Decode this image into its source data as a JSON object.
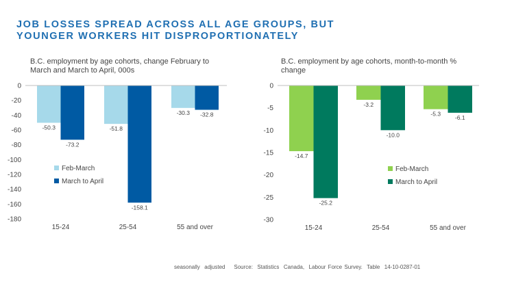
{
  "headline": {
    "line1": "JOB LOSSES SPREAD ACROSS ALL AGE GROUPS, BUT",
    "line2": "YOUNGER WORKERS HIT DISPROPORTIONATELY"
  },
  "footer": {
    "note": "seasonally  adjusted",
    "source": "Source:  Statistics  Canada,  Labour Force Survey.  Table  14-10-0287-01"
  },
  "colors": {
    "left_series1": "#a6d9ea",
    "left_series2": "#005aa3",
    "right_series1": "#8fd14f",
    "right_series2": "#007a5e"
  },
  "chart_data": [
    {
      "type": "bar",
      "title": "B.C. employment by age cohorts, change February to March and March to April, 000s",
      "categories": [
        "15-24",
        "25-54",
        "55 and over"
      ],
      "series": [
        {
          "name": "Feb-March",
          "values": [
            -50.3,
            -51.8,
            -30.3
          ],
          "labels": [
            "-50.3",
            "-51.8",
            "-30.3"
          ]
        },
        {
          "name": "March to April",
          "values": [
            -73.2,
            -158.1,
            -32.8
          ],
          "labels": [
            "-73.2",
            "-158.1",
            "-32.8"
          ]
        }
      ],
      "ylim": [
        -180,
        0
      ],
      "yticks": [
        "0",
        "-20",
        "-40",
        "-60",
        "-80",
        "-100",
        "-120",
        "-140",
        "-160",
        "-180"
      ],
      "ytick_values": [
        0,
        -20,
        -40,
        -60,
        -80,
        -100,
        -120,
        -140,
        -160,
        -180
      ],
      "legend": "lower-left"
    },
    {
      "type": "bar",
      "title": "B.C. employment by age cohorts,  month-to-month % change",
      "categories": [
        "15-24",
        "25-54",
        "55 and over"
      ],
      "series": [
        {
          "name": "Feb-March",
          "values": [
            -14.7,
            -3.2,
            -5.3
          ],
          "labels": [
            "-14.7",
            "-3.2",
            "-5.3"
          ]
        },
        {
          "name": "March to April",
          "values": [
            -25.2,
            -10.0,
            -6.1
          ],
          "labels": [
            "-25.2",
            "-10.0",
            "-6.1"
          ]
        }
      ],
      "ylim": [
        -30,
        0
      ],
      "yticks": [
        "0",
        "-5",
        "-10",
        "-15",
        "-20",
        "-25",
        "-30"
      ],
      "ytick_values": [
        0,
        -5,
        -10,
        -15,
        -20,
        -25,
        -30
      ],
      "legend": "lower-right"
    }
  ]
}
